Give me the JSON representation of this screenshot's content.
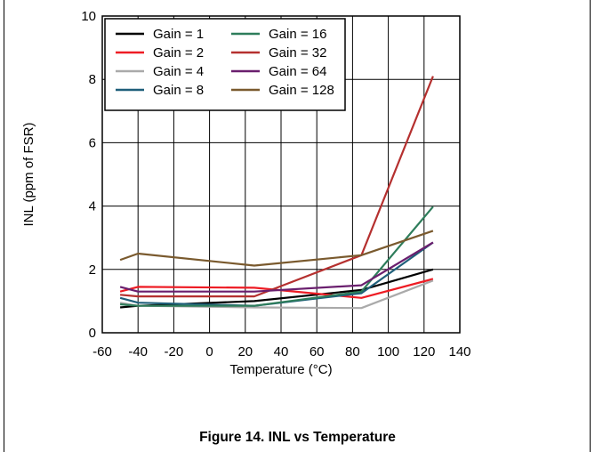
{
  "caption": "Figure 14. INL vs Temperature",
  "chart_data": {
    "type": "line",
    "xlabel": "Temperature (°C)",
    "ylabel": "INL (ppm of FSR)",
    "xlim": [
      -60,
      140
    ],
    "ylim": [
      0,
      10
    ],
    "xticks": [
      -60,
      -40,
      -20,
      0,
      20,
      40,
      60,
      80,
      100,
      120,
      140
    ],
    "yticks": [
      0,
      2,
      4,
      6,
      8,
      10
    ],
    "grid": true,
    "legend_position": "top-left",
    "legend_columns": 2,
    "series": [
      {
        "name": "Gain = 1",
        "color": "#000000",
        "x": [
          -50,
          -40,
          25,
          85,
          125
        ],
        "y": [
          0.8,
          0.85,
          1.0,
          1.35,
          2.0
        ]
      },
      {
        "name": "Gain = 2",
        "color": "#ee1c24",
        "x": [
          -50,
          -40,
          25,
          85,
          125
        ],
        "y": [
          1.3,
          1.45,
          1.42,
          1.1,
          1.7
        ]
      },
      {
        "name": "Gain = 4",
        "color": "#aaaaaa",
        "x": [
          -50,
          -40,
          25,
          85,
          125
        ],
        "y": [
          0.95,
          0.85,
          0.8,
          0.78,
          1.65
        ]
      },
      {
        "name": "Gain = 8",
        "color": "#1f5f7a",
        "x": [
          -50,
          -40,
          25,
          85,
          125
        ],
        "y": [
          1.1,
          0.95,
          0.85,
          1.25,
          2.85
        ]
      },
      {
        "name": "Gain = 16",
        "color": "#2e7d5b",
        "x": [
          -50,
          -40,
          25,
          85,
          125
        ],
        "y": [
          0.9,
          0.85,
          0.85,
          1.3,
          3.98
        ]
      },
      {
        "name": "Gain = 32",
        "color": "#b5302f",
        "x": [
          -50,
          -40,
          25,
          85,
          125
        ],
        "y": [
          1.2,
          1.15,
          1.15,
          2.45,
          8.1
        ]
      },
      {
        "name": "Gain = 64",
        "color": "#6a1f6e",
        "x": [
          -50,
          -40,
          25,
          85,
          125
        ],
        "y": [
          1.45,
          1.3,
          1.3,
          1.5,
          2.85
        ]
      },
      {
        "name": "Gain = 128",
        "color": "#7a5a2e",
        "x": [
          -50,
          -40,
          25,
          85,
          125
        ],
        "y": [
          2.3,
          2.5,
          2.12,
          2.45,
          3.22
        ]
      }
    ]
  }
}
